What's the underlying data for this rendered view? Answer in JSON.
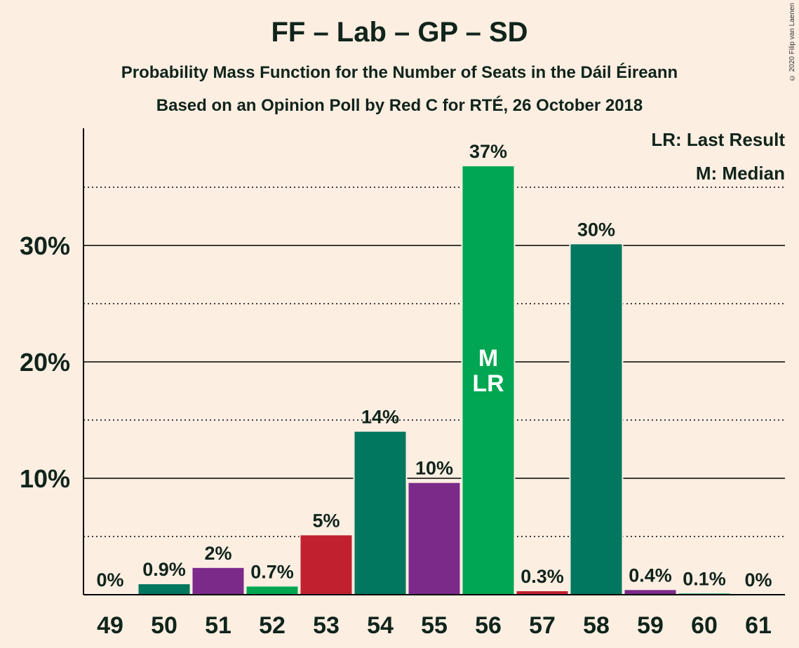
{
  "title": "FF – Lab – GP – SD",
  "subtitle1": "Probability Mass Function for the Number of Seats in the Dáil Éireann",
  "subtitle2": "Based on an Opinion Poll by Red C for RTÉ, 26 October 2018",
  "copyright": "© 2020 Filip van Laenen",
  "legend": {
    "last_result": "LR: Last Result",
    "median": "M: Median"
  },
  "chart_data": {
    "type": "bar",
    "title": "FF – Lab – GP – SD",
    "xlabel": "",
    "ylabel": "",
    "ylim": [
      0,
      40
    ],
    "yticks": [
      10,
      20,
      30
    ],
    "ytick_labels": [
      "10%",
      "20%",
      "30%"
    ],
    "minor_gridlines": [
      5,
      15,
      25,
      35
    ],
    "categories": [
      "49",
      "50",
      "51",
      "52",
      "53",
      "54",
      "55",
      "56",
      "57",
      "58",
      "59",
      "60",
      "61"
    ],
    "values": [
      0,
      0.9,
      2.3,
      0.7,
      5.1,
      14.0,
      9.6,
      36.8,
      0.3,
      30.1,
      0.4,
      0.1,
      0
    ],
    "labels": [
      "0%",
      "0.9%",
      "2%",
      "0.7%",
      "5%",
      "14%",
      "10%",
      "37%",
      "0.3%",
      "30%",
      "0.4%",
      "0.1%",
      "0%"
    ],
    "colors": [
      "#00775E",
      "#00775E",
      "#7B2A8A",
      "#00A651",
      "#C1212F",
      "#00775E",
      "#7B2A8A",
      "#00A651",
      "#C1212F",
      "#00775E",
      "#7B2A8A",
      "#00A651",
      "#C1212F"
    ],
    "median_index": 7,
    "last_result_index": 7,
    "median_mark": "M",
    "last_result_mark": "LR"
  }
}
